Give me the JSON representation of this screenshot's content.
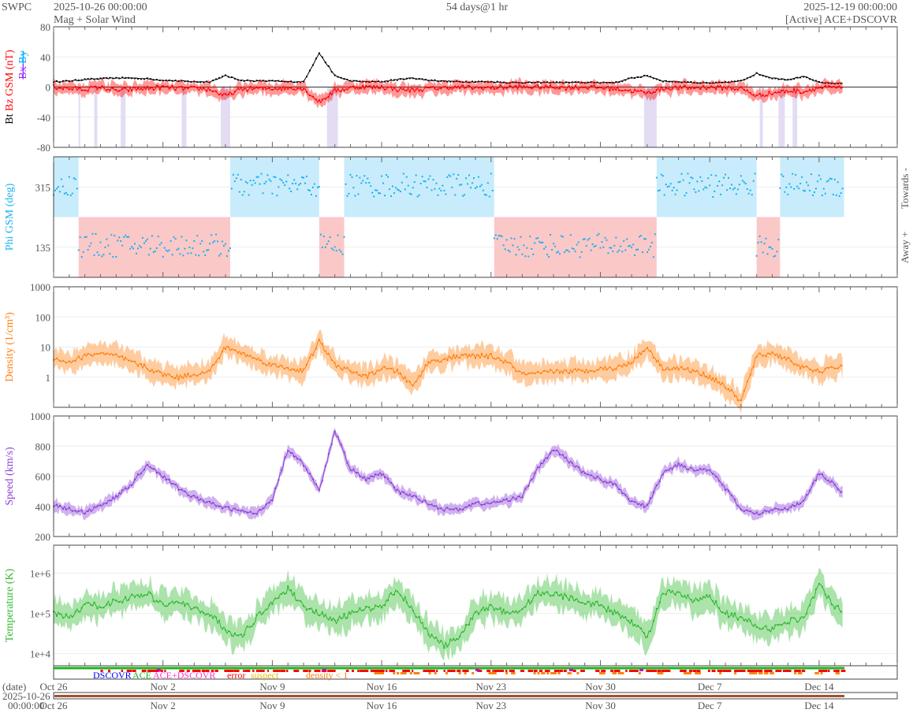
{
  "header": {
    "org": "SWPC",
    "start": "2025-10-26 00:00:00",
    "subtitle": "Mag + Solar Wind",
    "span": "54 days@1 hr",
    "end": "2025-12-19 00:00:00",
    "source": "[Active] ACE+DSCOVR"
  },
  "colors": {
    "bt": "#000000",
    "bz": "#ff0000",
    "bx": "#9933ff",
    "by": "#00aaff",
    "phi": "#1ab0f0",
    "towards": "#c8ecfb",
    "away": "#fbc8c8",
    "density": "#ff7f0e",
    "speed": "#8a3fd6",
    "temperature": "#2db82d"
  },
  "legend": {
    "dscovr": "DSCOVR",
    "ace": "ACE",
    "both": "ACE+DSCOVR",
    "error": "error",
    "suspect": "suspect",
    "density": "density < 1"
  },
  "date_axis": {
    "label": "(date)",
    "start_line1": "2025-10-26",
    "start_line2": "00:00:00"
  },
  "chart_data": {
    "type": "line",
    "days_total": 54,
    "x_ticks": [
      {
        "day": 0,
        "label": "Oct 26"
      },
      {
        "day": 7,
        "label": "Nov 2"
      },
      {
        "day": 14,
        "label": "Nov 9"
      },
      {
        "day": 21,
        "label": "Nov 16"
      },
      {
        "day": 28,
        "label": "Nov 23"
      },
      {
        "day": 35,
        "label": "Nov 30"
      },
      {
        "day": 42,
        "label": "Dec 7"
      },
      {
        "day": 49,
        "label": "Dec 14"
      }
    ],
    "panels": [
      {
        "id": "mag",
        "ylabel_parts": [
          "Bt",
          "Bz GSM (nT)"
        ],
        "ylabel_extra": [
          "Bx",
          "By"
        ],
        "ylim": [
          -80,
          80
        ],
        "scale": "linear",
        "yticks": [
          {
            "v": 80,
            "l": "80"
          },
          {
            "v": 40,
            "l": "40"
          },
          {
            "v": 0,
            "l": "0"
          },
          {
            "v": -40,
            "l": "-40"
          },
          {
            "v": -80,
            "l": "-80"
          }
        ],
        "series": [
          {
            "name": "Bt",
            "daily": [
              7,
              8,
              10,
              11,
              12,
              12,
              11,
              9,
              8,
              7,
              7,
              15,
              9,
              8,
              8,
              7,
              7,
              45,
              15,
              8,
              7,
              7,
              10,
              12,
              9,
              8,
              7,
              7,
              7,
              6,
              6,
              6,
              6,
              6,
              6,
              6,
              6,
              12,
              15,
              8,
              7,
              6,
              5,
              6,
              8,
              18,
              12,
              10,
              14,
              6,
              5,
              5
            ]
          },
          {
            "name": "Bz",
            "daily": [
              0,
              -2,
              -3,
              0,
              -5,
              -3,
              -2,
              0,
              -2,
              -2,
              -3,
              -12,
              -3,
              -2,
              -2,
              -1,
              -2,
              -20,
              -5,
              -1,
              0,
              0,
              -3,
              -4,
              -2,
              -1,
              0,
              -1,
              -1,
              0,
              0,
              0,
              0,
              -1,
              0,
              -1,
              -2,
              -5,
              -8,
              -2,
              -1,
              -1,
              0,
              -1,
              -2,
              -12,
              -8,
              -5,
              -6,
              -1,
              -1,
              -1
            ]
          }
        ]
      },
      {
        "id": "phi",
        "ylabel": "Phi GSM (deg)",
        "right_labels": [
          "Towards -",
          "Away +"
        ],
        "ylim": [
          45,
          405
        ],
        "scale": "linear",
        "yticks": [
          {
            "v": 315,
            "l": "315"
          },
          {
            "v": 135,
            "l": "135"
          }
        ],
        "sectors": [
          {
            "from": 0,
            "to": 1.6,
            "s": "towards"
          },
          {
            "from": 1.6,
            "to": 11.3,
            "s": "away"
          },
          {
            "from": 11.3,
            "to": 17.0,
            "s": "towards"
          },
          {
            "from": 17.0,
            "to": 18.6,
            "s": "away"
          },
          {
            "from": 18.6,
            "to": 28.2,
            "s": "towards"
          },
          {
            "from": 28.2,
            "to": 38.6,
            "s": "away"
          },
          {
            "from": 38.6,
            "to": 45.0,
            "s": "towards"
          },
          {
            "from": 45.0,
            "to": 46.5,
            "s": "away"
          },
          {
            "from": 46.5,
            "to": 50.6,
            "s": "towards"
          }
        ]
      },
      {
        "id": "density",
        "ylabel": "Density (1/cm³)",
        "ylim": [
          0.1,
          1000
        ],
        "scale": "log",
        "yticks": [
          {
            "v": 1000,
            "l": "1000"
          },
          {
            "v": 100,
            "l": "100"
          },
          {
            "v": 10,
            "l": "10"
          },
          {
            "v": 1,
            "l": "1"
          }
        ],
        "log10_daily": [
          0.6,
          0.5,
          0.7,
          0.8,
          0.7,
          0.5,
          0.3,
          0.1,
          0.0,
          0.1,
          0.2,
          1.0,
          0.8,
          0.6,
          0.4,
          0.3,
          0.2,
          1.2,
          0.4,
          0.2,
          0.0,
          0.3,
          0.2,
          -0.3,
          0.5,
          0.6,
          0.7,
          0.7,
          0.7,
          0.5,
          0.1,
          0.1,
          0.2,
          0.2,
          0.2,
          0.3,
          0.3,
          0.5,
          1.0,
          0.3,
          0.3,
          0.2,
          0.0,
          -0.3,
          -0.8,
          0.7,
          0.8,
          0.6,
          0.3,
          0.2,
          0.3,
          0.5
        ]
      },
      {
        "id": "speed",
        "ylabel": "Speed (km/s)",
        "ylim": [
          200,
          1000
        ],
        "scale": "linear",
        "yticks": [
          {
            "v": 1000,
            "l": "1000"
          },
          {
            "v": 800,
            "l": "800"
          },
          {
            "v": 600,
            "l": "600"
          },
          {
            "v": 400,
            "l": "400"
          },
          {
            "v": 200,
            "l": "200"
          }
        ],
        "daily": [
          410,
          380,
          360,
          410,
          460,
          550,
          680,
          600,
          520,
          460,
          420,
          390,
          370,
          350,
          450,
          780,
          680,
          500,
          900,
          650,
          580,
          620,
          500,
          470,
          420,
          380,
          380,
          420,
          420,
          440,
          470,
          650,
          780,
          700,
          620,
          580,
          540,
          430,
          400,
          620,
          680,
          640,
          650,
          520,
          380,
          350,
          380,
          390,
          430,
          620,
          540,
          450
        ]
      },
      {
        "id": "temperature",
        "ylabel": "Temperature (K)",
        "ylim": [
          5000,
          5000000
        ],
        "scale": "log",
        "yticks": [
          {
            "v": 1000000,
            "l": "1e+6"
          },
          {
            "v": 100000,
            "l": "1e+5"
          },
          {
            "v": 10000,
            "l": "1e+4"
          }
        ],
        "log10_daily": [
          5.0,
          4.9,
          5.2,
          5.2,
          5.3,
          5.4,
          5.5,
          5.2,
          5.3,
          5.1,
          5.0,
          4.6,
          4.4,
          4.9,
          5.3,
          5.6,
          5.2,
          5.0,
          4.8,
          5.0,
          5.1,
          5.2,
          5.6,
          5.1,
          4.5,
          4.2,
          4.4,
          5.0,
          5.2,
          5.0,
          5.1,
          5.5,
          5.5,
          5.4,
          5.3,
          5.2,
          5.0,
          4.8,
          4.4,
          5.5,
          5.5,
          5.3,
          5.4,
          5.0,
          4.9,
          4.7,
          4.6,
          4.8,
          4.9,
          5.7,
          5.2,
          5.0
        ]
      }
    ]
  }
}
